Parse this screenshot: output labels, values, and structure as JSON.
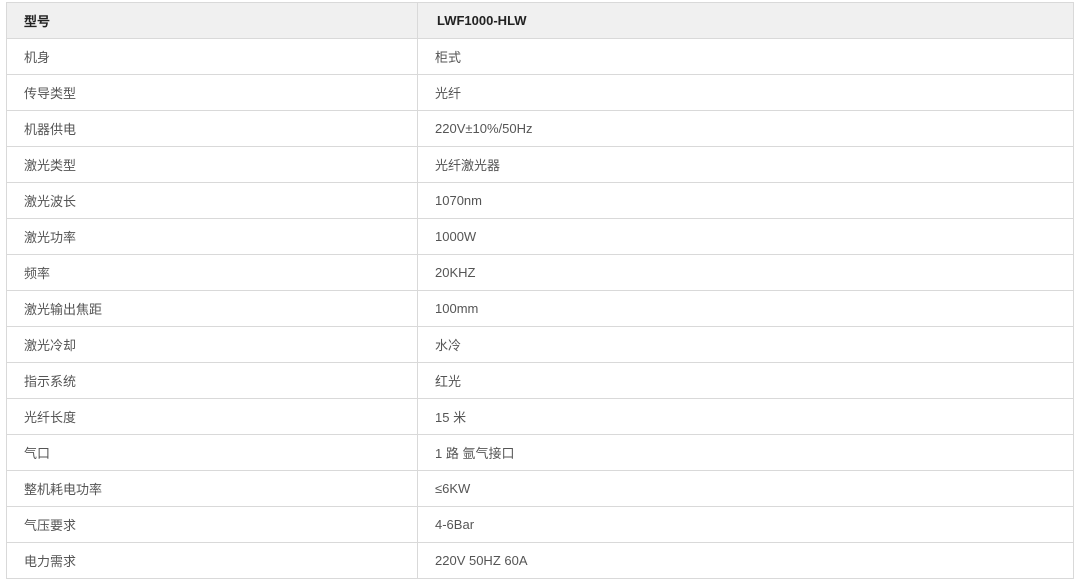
{
  "header": {
    "label": "型号",
    "value": "LWF1000-HLW"
  },
  "rows": [
    {
      "label": "机身",
      "value": "柜式"
    },
    {
      "label": "传导类型",
      "value": "光纤"
    },
    {
      "label": "机器供电",
      "value": "220V±10%/50Hz"
    },
    {
      "label": "激光类型",
      "value": "光纤激光器"
    },
    {
      "label": "激光波长",
      "value": "1070nm"
    },
    {
      "label": "激光功率",
      "value": "1000W"
    },
    {
      "label": "频率",
      "value": "20KHZ"
    },
    {
      "label": "激光输出焦距",
      "value": "100mm"
    },
    {
      "label": "激光冷却",
      "value": "水冷"
    },
    {
      "label": "指示系统",
      "value": "红光"
    },
    {
      "label": "光纤长度",
      "value": "15 米"
    },
    {
      "label": "气口",
      "value": "1 路 氩气接口"
    },
    {
      "label": "整机耗电功率",
      "value": "≤6KW"
    },
    {
      "label": "气压要求",
      "value": "4-6Bar"
    },
    {
      "label": "电力需求",
      "value": "220V 50HZ 60A"
    }
  ]
}
